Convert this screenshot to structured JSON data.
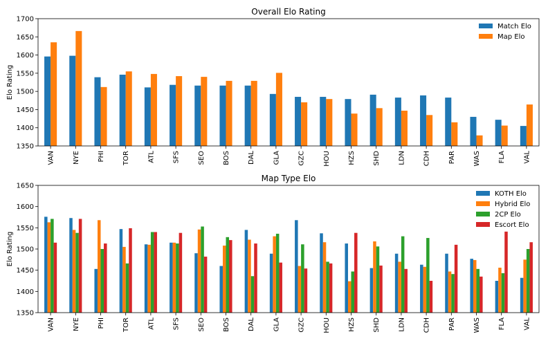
{
  "chart_data": [
    {
      "type": "bar",
      "title": "Overall Elo Rating",
      "xlabel": "",
      "ylabel": "Elo Rating",
      "ylim": [
        1350,
        1700
      ],
      "yticks": [
        1350,
        1400,
        1450,
        1500,
        1550,
        1600,
        1650,
        1700
      ],
      "categories": [
        "VAN",
        "NYE",
        "PHI",
        "TOR",
        "ATL",
        "SFS",
        "SEO",
        "BOS",
        "DAL",
        "GLA",
        "GZC",
        "HOU",
        "HZS",
        "SHD",
        "LDN",
        "CDH",
        "PAR",
        "WAS",
        "FLA",
        "VAL"
      ],
      "legend_position": "top-right",
      "grid": false,
      "series": [
        {
          "name": "Match Elo",
          "color": "#1f77b4",
          "values": [
            1596,
            1598,
            1539,
            1546,
            1511,
            1518,
            1516,
            1516,
            1516,
            1493,
            1485,
            1485,
            1479,
            1491,
            1483,
            1489,
            1483,
            1430,
            1422,
            1405
          ]
        },
        {
          "name": "Map Elo",
          "color": "#ff7f0e",
          "values": [
            1635,
            1666,
            1512,
            1555,
            1548,
            1542,
            1540,
            1529,
            1529,
            1551,
            1470,
            1479,
            1439,
            1454,
            1447,
            1435,
            1415,
            1379,
            1406,
            1464
          ]
        }
      ]
    },
    {
      "type": "bar",
      "title": "Map Type Elo",
      "xlabel": "",
      "ylabel": "Elo Rating",
      "ylim": [
        1350,
        1650
      ],
      "yticks": [
        1350,
        1400,
        1450,
        1500,
        1550,
        1600,
        1650
      ],
      "categories": [
        "VAN",
        "NYE",
        "PHI",
        "TOR",
        "ATL",
        "SFS",
        "SEO",
        "BOS",
        "DAL",
        "GLA",
        "GZC",
        "HOU",
        "HZS",
        "SHD",
        "LDN",
        "CDH",
        "PAR",
        "WAS",
        "FLA",
        "VAL"
      ],
      "legend_position": "top-right",
      "grid": false,
      "series": [
        {
          "name": "KOTH Elo",
          "color": "#1f77b4",
          "values": [
            1576,
            1573,
            1453,
            1547,
            1511,
            1515,
            1490,
            1460,
            1545,
            1489,
            1568,
            1537,
            1513,
            1455,
            1489,
            1463,
            1489,
            1477,
            1425,
            1432
          ]
        },
        {
          "name": "Hybrid Elo",
          "color": "#ff7f0e",
          "values": [
            1563,
            1545,
            1568,
            1505,
            1510,
            1515,
            1546,
            1508,
            1522,
            1530,
            1460,
            1516,
            1424,
            1518,
            1470,
            1458,
            1447,
            1474,
            1456,
            1475
          ]
        },
        {
          "name": "2CP Elo",
          "color": "#2ca02c",
          "values": [
            1571,
            1538,
            1500,
            1466,
            1540,
            1513,
            1553,
            1528,
            1436,
            1536,
            1511,
            1470,
            1447,
            1506,
            1530,
            1526,
            1441,
            1453,
            1443,
            1500
          ]
        },
        {
          "name": "Escort Elo",
          "color": "#d62728",
          "values": [
            1515,
            1571,
            1513,
            1549,
            1540,
            1538,
            1482,
            1521,
            1513,
            1468,
            1454,
            1466,
            1538,
            1461,
            1453,
            1425,
            1510,
            1435,
            1541,
            1516
          ]
        }
      ]
    }
  ]
}
